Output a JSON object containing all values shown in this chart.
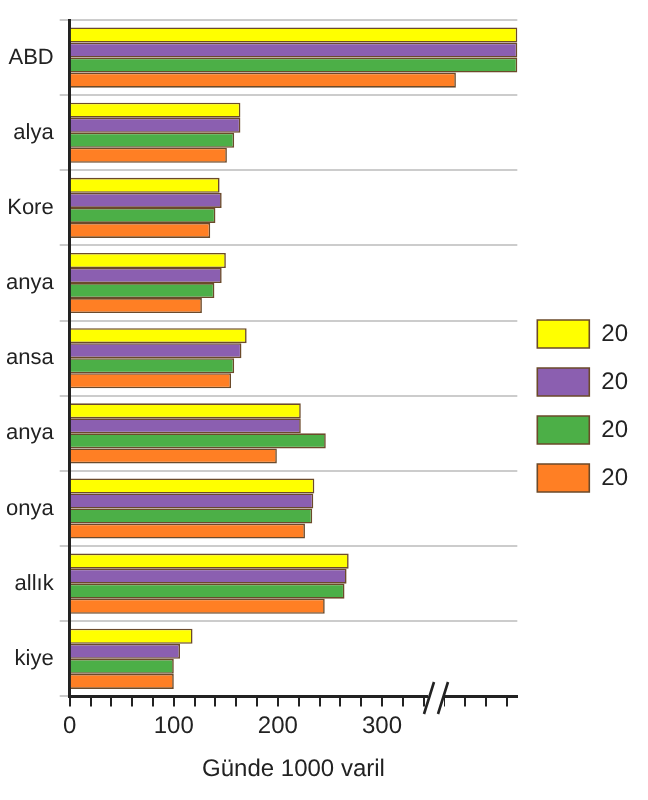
{
  "chart_data": {
    "type": "bar",
    "orientation": "horizontal",
    "xlabel": "Günde 1000 varil",
    "categories": [
      "ABD",
      "alya",
      "Kore",
      "anya",
      "ansa",
      "anya",
      "onya",
      "allık",
      "kiye"
    ],
    "series": [
      {
        "name": "20",
        "color": "#ffff00",
        "values": [
          430,
          164,
          144,
          150,
          170,
          222,
          235,
          268,
          118
        ]
      },
      {
        "name": "20",
        "color": "#8b5fb0",
        "values": [
          430,
          164,
          146,
          146,
          165,
          222,
          234,
          266,
          106
        ]
      },
      {
        "name": "20",
        "color": "#4caf47",
        "values": [
          430,
          158,
          140,
          139,
          158,
          246,
          233,
          264,
          100
        ]
      },
      {
        "name": "20",
        "color": "#ff7f24",
        "values": [
          371,
          151,
          135,
          127,
          155,
          199,
          226,
          245,
          100
        ]
      }
    ],
    "xlim": [
      0,
      430
    ],
    "xticks": [
      0,
      {
        "value": 20,
        "label": null
      },
      {
        "value": 40,
        "label": null
      },
      {
        "value": 60,
        "label": null
      },
      {
        "value": 80,
        "label": null
      },
      100,
      {
        "value": 120,
        "label": null
      },
      {
        "value": 140,
        "label": null
      },
      {
        "value": 160,
        "label": null
      },
      {
        "value": 180,
        "label": null
      },
      200,
      {
        "value": 220,
        "label": null
      },
      {
        "value": 240,
        "label": null
      },
      {
        "value": 260,
        "label": null
      },
      {
        "value": 280,
        "label": null
      },
      300,
      {
        "value": 320,
        "label": null
      },
      {
        "value": 340,
        "label": null
      },
      {
        "value": 360,
        "label": null
      },
      {
        "value": 380,
        "label": null
      },
      {
        "value": 400,
        "label": null
      },
      {
        "value": 420,
        "label": null
      }
    ],
    "grid": "y",
    "legend": "right"
  }
}
